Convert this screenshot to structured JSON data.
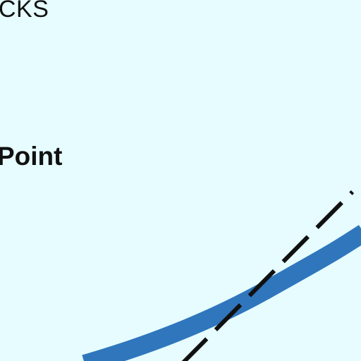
{
  "labels": {
    "top": "CKS",
    "point": "Point"
  },
  "colors": {
    "background": "#e6fcfe",
    "curve": "#2f76bd",
    "dashed_line": "#111111",
    "text": "#111111"
  }
}
